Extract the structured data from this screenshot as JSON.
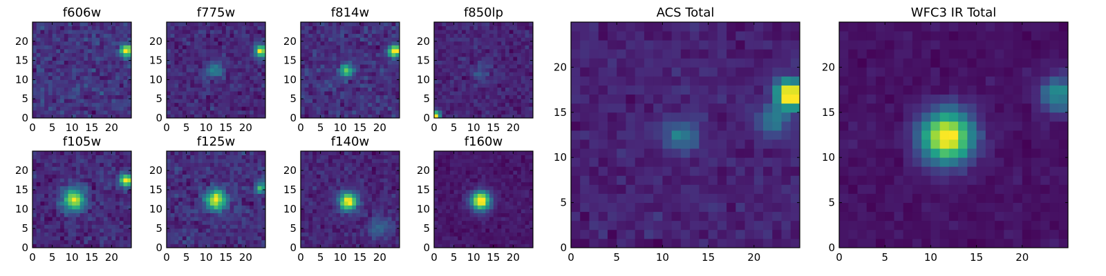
{
  "figure": {
    "background": "#ffffff",
    "colormap": "viridis",
    "colormap_stops": [
      "#440154",
      "#482878",
      "#3e4989",
      "#31688e",
      "#26828e",
      "#1f9e89",
      "#35b779",
      "#6ece58",
      "#b5de2b",
      "#fde725"
    ]
  },
  "chart_data": [
    {
      "type": "heatmap",
      "title": "f606w",
      "xlim": [
        0,
        25
      ],
      "ylim": [
        0,
        25
      ],
      "x_ticks": [
        0,
        5,
        10,
        15,
        20
      ],
      "y_ticks": [
        0,
        5,
        10,
        15,
        20
      ],
      "grid_size": 25,
      "seed": 11,
      "noise": 0.55,
      "sources": [
        {
          "x": 23.8,
          "y": 17.5,
          "amp": 1.5,
          "sigma": 1.1
        }
      ]
    },
    {
      "type": "heatmap",
      "title": "f775w",
      "xlim": [
        0,
        25
      ],
      "ylim": [
        0,
        25
      ],
      "x_ticks": [
        0,
        5,
        10,
        15,
        20
      ],
      "y_ticks": [
        0,
        5,
        10,
        15,
        20
      ],
      "grid_size": 25,
      "seed": 23,
      "noise": 0.5,
      "sources": [
        {
          "x": 23.8,
          "y": 17.5,
          "amp": 1.6,
          "sigma": 1.1
        },
        {
          "x": 12,
          "y": 12.5,
          "amp": 0.6,
          "sigma": 1.5
        }
      ]
    },
    {
      "type": "heatmap",
      "title": "f814w",
      "xlim": [
        0,
        25
      ],
      "ylim": [
        0,
        25
      ],
      "x_ticks": [
        0,
        5,
        10,
        15,
        20
      ],
      "y_ticks": [
        0,
        5,
        10,
        15,
        20
      ],
      "grid_size": 25,
      "seed": 37,
      "noise": 0.55,
      "sources": [
        {
          "x": 23.8,
          "y": 17.5,
          "amp": 1.6,
          "sigma": 1.1
        },
        {
          "x": 11.5,
          "y": 12.5,
          "amp": 1.0,
          "sigma": 1.2
        }
      ]
    },
    {
      "type": "heatmap",
      "title": "f850lp",
      "xlim": [
        0,
        25
      ],
      "ylim": [
        0,
        25
      ],
      "x_ticks": [
        0,
        5,
        10,
        15,
        20
      ],
      "y_ticks": [
        0,
        5,
        10,
        15,
        20
      ],
      "grid_size": 25,
      "seed": 41,
      "noise": 0.5,
      "sources": [
        {
          "x": 0.5,
          "y": 0.8,
          "amp": 2.0,
          "sigma": 0.8
        },
        {
          "x": 12,
          "y": 12,
          "amp": 0.4,
          "sigma": 1.5
        }
      ]
    },
    {
      "type": "heatmap",
      "title": "f105w",
      "xlim": [
        0,
        25
      ],
      "ylim": [
        0,
        25
      ],
      "x_ticks": [
        0,
        5,
        10,
        15,
        20
      ],
      "y_ticks": [
        0,
        5,
        10,
        15,
        20
      ],
      "grid_size": 25,
      "seed": 53,
      "noise": 0.5,
      "sources": [
        {
          "x": 10.5,
          "y": 12.5,
          "amp": 1.4,
          "sigma": 2.0
        },
        {
          "x": 23.8,
          "y": 17.5,
          "amp": 1.5,
          "sigma": 1.2
        }
      ]
    },
    {
      "type": "heatmap",
      "title": "f125w",
      "xlim": [
        0,
        25
      ],
      "ylim": [
        0,
        25
      ],
      "x_ticks": [
        0,
        5,
        10,
        15,
        20
      ],
      "y_ticks": [
        0,
        5,
        10,
        15,
        20
      ],
      "grid_size": 25,
      "seed": 67,
      "noise": 0.55,
      "sources": [
        {
          "x": 12.5,
          "y": 12.5,
          "amp": 1.6,
          "sigma": 1.8
        },
        {
          "x": 24,
          "y": 15.5,
          "amp": 1.1,
          "sigma": 1.0
        }
      ]
    },
    {
      "type": "heatmap",
      "title": "f140w",
      "xlim": [
        0,
        25
      ],
      "ylim": [
        0,
        25
      ],
      "x_ticks": [
        0,
        5,
        10,
        15,
        20
      ],
      "y_ticks": [
        0,
        5,
        10,
        15,
        20
      ],
      "grid_size": 25,
      "seed": 79,
      "noise": 0.5,
      "sources": [
        {
          "x": 12,
          "y": 12,
          "amp": 2.0,
          "sigma": 1.6
        },
        {
          "x": 20,
          "y": 5,
          "amp": 0.5,
          "sigma": 2.0
        }
      ]
    },
    {
      "type": "heatmap",
      "title": "f160w",
      "xlim": [
        0,
        25
      ],
      "ylim": [
        0,
        25
      ],
      "x_ticks": [
        0,
        5,
        10,
        15,
        20
      ],
      "y_ticks": [
        0,
        5,
        10,
        15,
        20
      ],
      "grid_size": 25,
      "seed": 83,
      "noise": 0.35,
      "sources": [
        {
          "x": 11.8,
          "y": 12.2,
          "amp": 2.4,
          "sigma": 1.7
        }
      ]
    },
    {
      "type": "heatmap",
      "title": "ACS Total",
      "xlim": [
        0,
        25
      ],
      "ylim": [
        0,
        25
      ],
      "x_ticks": [
        0,
        5,
        10,
        15,
        20
      ],
      "y_ticks": [
        0,
        5,
        10,
        15,
        20
      ],
      "grid_size": 25,
      "seed": 97,
      "noise": 0.45,
      "sources": [
        {
          "x": 24,
          "y": 17,
          "amp": 2.6,
          "sigma": 1.1
        },
        {
          "x": 22,
          "y": 14,
          "amp": 0.8,
          "sigma": 1.2
        },
        {
          "x": 12,
          "y": 12.5,
          "amp": 0.9,
          "sigma": 1.2
        }
      ]
    },
    {
      "type": "heatmap",
      "title": "WFC3 IR Total",
      "xlim": [
        0,
        25
      ],
      "ylim": [
        0,
        25
      ],
      "x_ticks": [
        0,
        5,
        10,
        15,
        20
      ],
      "y_ticks": [
        0,
        5,
        10,
        15,
        20
      ],
      "grid_size": 25,
      "seed": 101,
      "noise": 0.3,
      "sources": [
        {
          "x": 11.8,
          "y": 12.3,
          "amp": 2.6,
          "sigma": 2.0
        },
        {
          "x": 24,
          "y": 17,
          "amp": 1.2,
          "sigma": 1.4
        }
      ]
    }
  ]
}
